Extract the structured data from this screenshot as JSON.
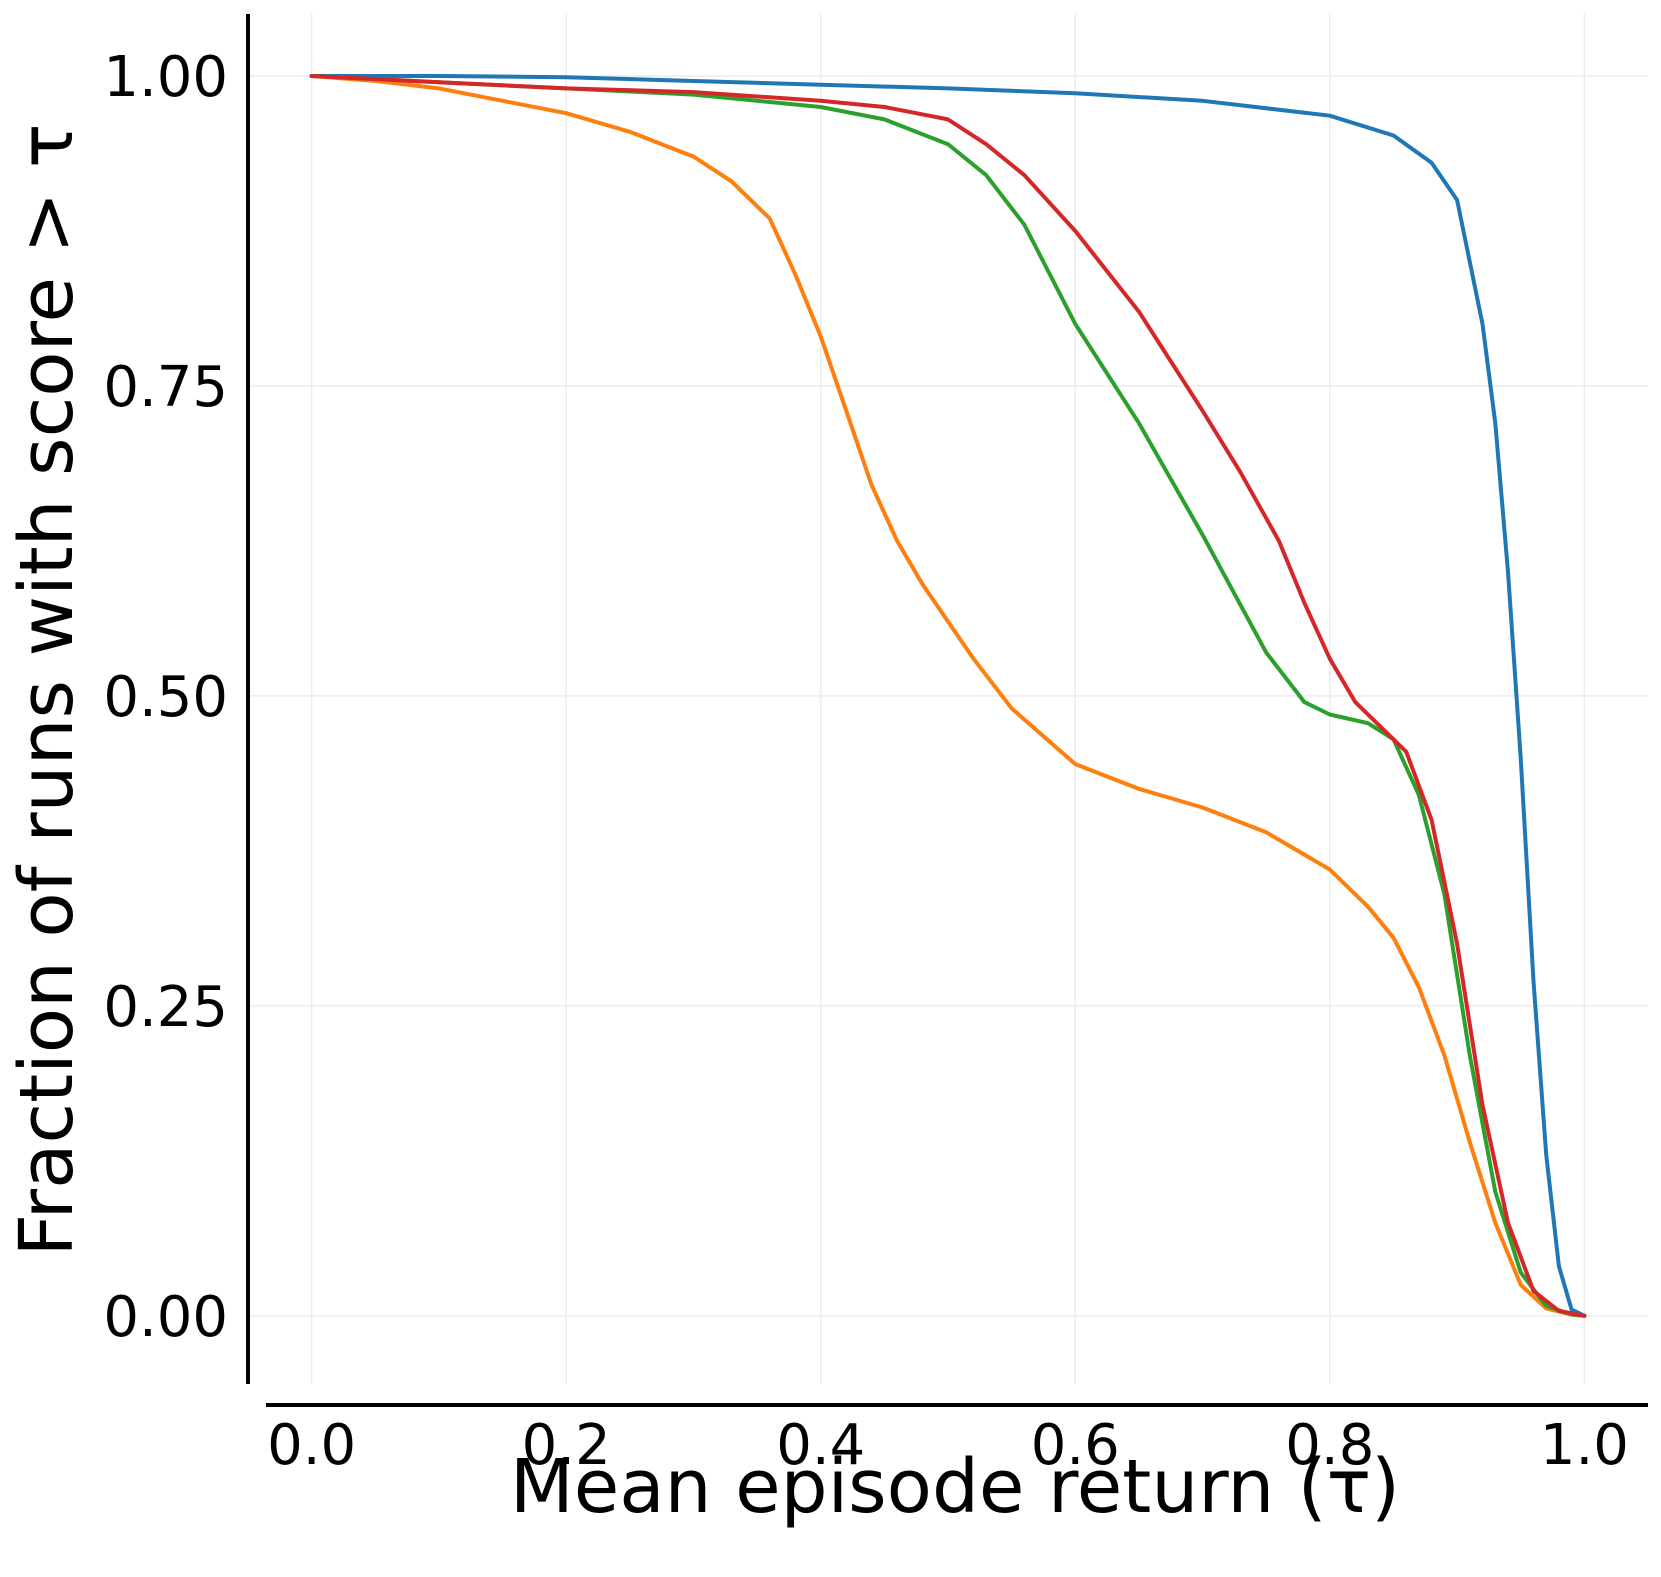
{
  "chart_data": {
    "type": "line",
    "xlabel": "Mean episode return (τ)",
    "ylabel": "Fraction of runs with score > τ",
    "xlim": [
      -0.05,
      1.05
    ],
    "ylim": [
      -0.055,
      1.05
    ],
    "xticks": [
      0.0,
      0.2,
      0.4,
      0.6,
      0.8,
      1.0
    ],
    "xtick_labels": [
      "0.0",
      "0.2",
      "0.4",
      "0.6",
      "0.8",
      "1.0"
    ],
    "yticks": [
      0.0,
      0.25,
      0.5,
      0.75,
      1.0
    ],
    "ytick_labels": [
      "0.00",
      "0.25",
      "0.50",
      "0.75",
      "1.00"
    ],
    "grid": true,
    "legend": "none",
    "series": [
      {
        "color": "#1f77b4",
        "x": [
          0.0,
          0.1,
          0.2,
          0.3,
          0.4,
          0.5,
          0.6,
          0.7,
          0.8,
          0.85,
          0.88,
          0.9,
          0.92,
          0.93,
          0.94,
          0.95,
          0.96,
          0.97,
          0.98,
          0.99,
          1.0
        ],
        "y": [
          1.0,
          1.0,
          0.999,
          0.996,
          0.993,
          0.99,
          0.986,
          0.98,
          0.968,
          0.952,
          0.93,
          0.9,
          0.8,
          0.72,
          0.6,
          0.45,
          0.27,
          0.13,
          0.04,
          0.005,
          0.0
        ]
      },
      {
        "color": "#ff7f0e",
        "x": [
          0.0,
          0.05,
          0.1,
          0.15,
          0.2,
          0.25,
          0.3,
          0.33,
          0.36,
          0.38,
          0.4,
          0.42,
          0.44,
          0.46,
          0.48,
          0.5,
          0.52,
          0.55,
          0.6,
          0.65,
          0.7,
          0.75,
          0.8,
          0.83,
          0.85,
          0.87,
          0.89,
          0.91,
          0.93,
          0.95,
          0.97,
          0.99,
          1.0
        ],
        "y": [
          1.0,
          0.996,
          0.99,
          0.98,
          0.97,
          0.955,
          0.935,
          0.915,
          0.885,
          0.84,
          0.79,
          0.73,
          0.67,
          0.625,
          0.59,
          0.56,
          0.53,
          0.49,
          0.445,
          0.425,
          0.41,
          0.39,
          0.36,
          0.33,
          0.305,
          0.265,
          0.21,
          0.14,
          0.075,
          0.025,
          0.006,
          0.001,
          0.0
        ]
      },
      {
        "color": "#2ca02c",
        "x": [
          0.0,
          0.1,
          0.2,
          0.3,
          0.4,
          0.45,
          0.5,
          0.53,
          0.56,
          0.6,
          0.65,
          0.7,
          0.75,
          0.78,
          0.8,
          0.83,
          0.85,
          0.87,
          0.89,
          0.91,
          0.93,
          0.95,
          0.97,
          0.99,
          1.0
        ],
        "y": [
          1.0,
          0.995,
          0.99,
          0.985,
          0.975,
          0.965,
          0.945,
          0.92,
          0.88,
          0.8,
          0.72,
          0.63,
          0.535,
          0.495,
          0.485,
          0.478,
          0.465,
          0.42,
          0.34,
          0.21,
          0.1,
          0.035,
          0.008,
          0.001,
          0.0
        ]
      },
      {
        "color": "#d62728",
        "x": [
          0.0,
          0.1,
          0.2,
          0.3,
          0.4,
          0.45,
          0.5,
          0.53,
          0.56,
          0.6,
          0.65,
          0.7,
          0.73,
          0.76,
          0.78,
          0.8,
          0.82,
          0.84,
          0.86,
          0.88,
          0.9,
          0.92,
          0.94,
          0.96,
          0.98,
          1.0
        ],
        "y": [
          1.0,
          0.995,
          0.99,
          0.987,
          0.98,
          0.975,
          0.965,
          0.945,
          0.92,
          0.875,
          0.81,
          0.73,
          0.68,
          0.625,
          0.575,
          0.53,
          0.495,
          0.475,
          0.455,
          0.4,
          0.3,
          0.17,
          0.075,
          0.02,
          0.004,
          0.0
        ]
      }
    ]
  }
}
